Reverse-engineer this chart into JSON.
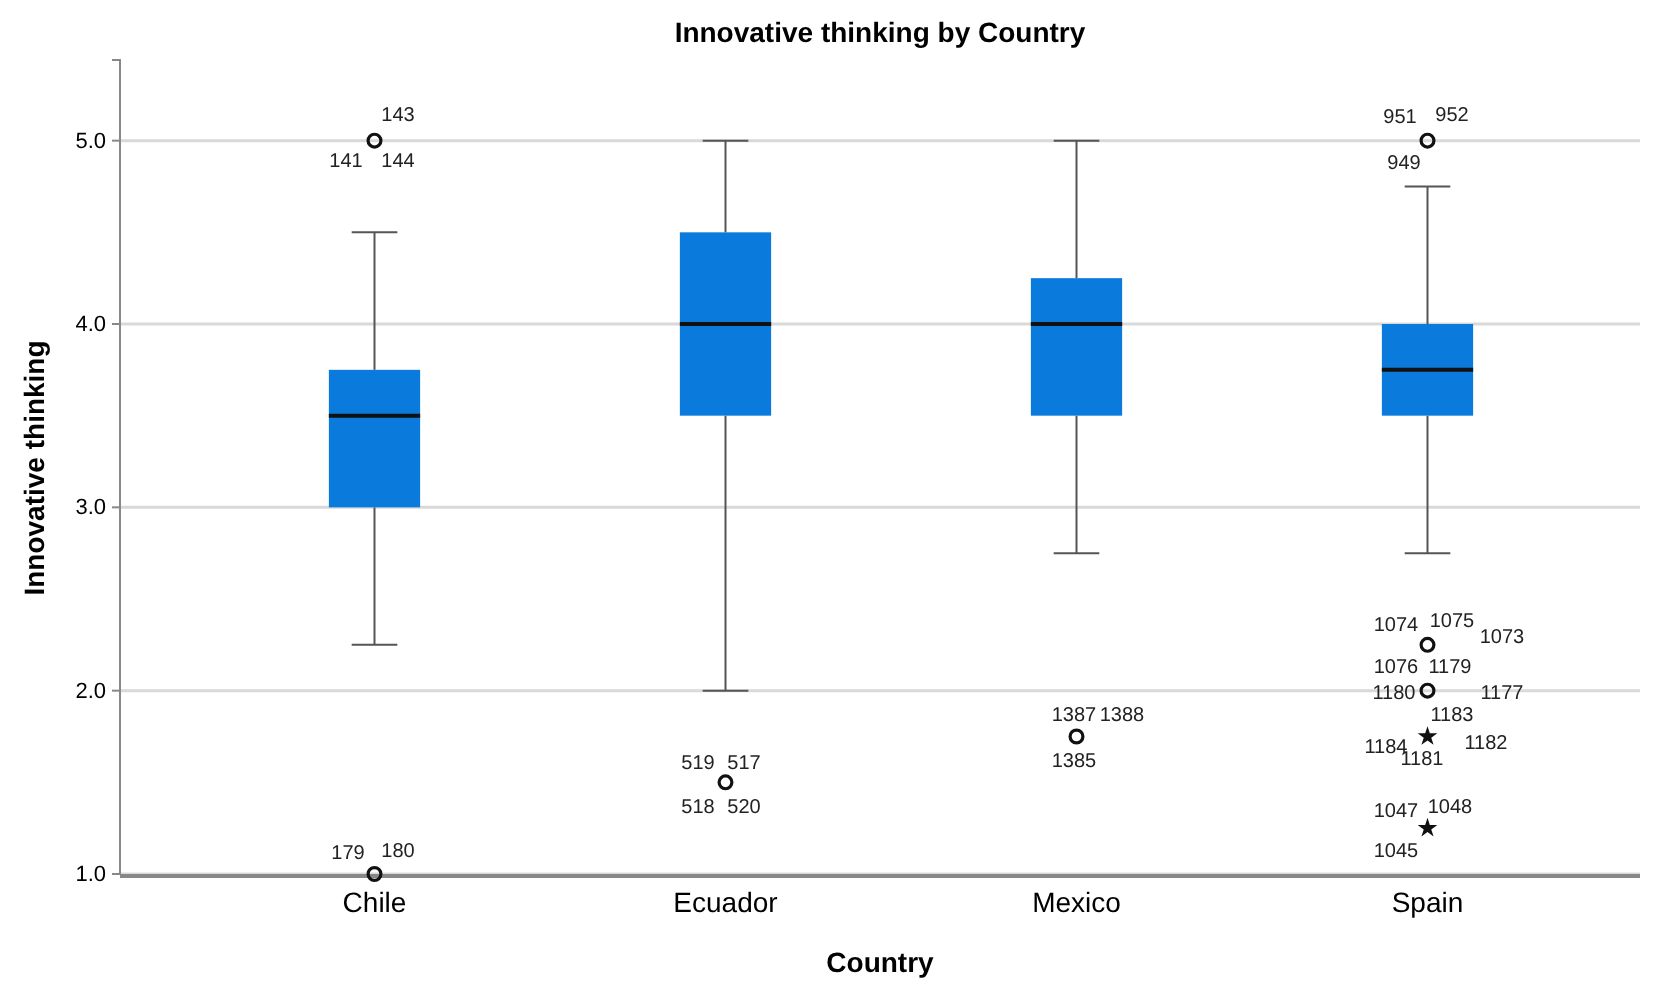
{
  "chart_data": {
    "type": "box",
    "title": "Innovative thinking by Country",
    "xlabel": "Country",
    "ylabel": "Innovative thinking",
    "categories": [
      "Chile",
      "Ecuador",
      "Mexico",
      "Spain"
    ],
    "series": [
      {
        "color": "#0a7bdc",
        "boxes": [
          {
            "low": 2.25,
            "q1": 3.0,
            "median": 3.5,
            "q3": 3.75,
            "high": 4.5,
            "outliers": [
              5.0,
              1.0
            ]
          },
          {
            "low": 2.0,
            "q1": 3.5,
            "median": 4.0,
            "q3": 4.5,
            "high": 5.0,
            "outliers": [
              1.5
            ]
          },
          {
            "low": 2.75,
            "q1": 3.5,
            "median": 4.0,
            "q3": 4.25,
            "high": 5.0,
            "outliers": [
              1.75
            ]
          },
          {
            "low": 2.75,
            "q1": 3.5,
            "median": 3.75,
            "q3": 4.0,
            "high": 4.75,
            "outliers": [
              5.0,
              2.25,
              2.0,
              1.75,
              1.25
            ]
          }
        ]
      }
    ],
    "ylim": [
      1.0,
      5.44
    ],
    "yticks": [
      {
        "value": 1,
        "label": "1.0"
      },
      {
        "value": 2,
        "label": "2.0"
      },
      {
        "value": 3,
        "label": "3.0"
      },
      {
        "value": 4,
        "label": "4.0"
      },
      {
        "value": 5,
        "label": "5.0"
      }
    ],
    "grid": "y",
    "annotations": [
      "141",
      "143",
      "144",
      "179",
      "180",
      "519",
      "517",
      "518",
      "520",
      "1387",
      "1388",
      "1385",
      "951",
      "952",
      "949",
      "1074",
      "1075",
      "1073",
      "1076",
      "1179",
      "1180",
      "1177",
      "1183",
      "1184",
      "1182",
      "1181",
      "1047",
      "1048",
      "1045"
    ]
  }
}
